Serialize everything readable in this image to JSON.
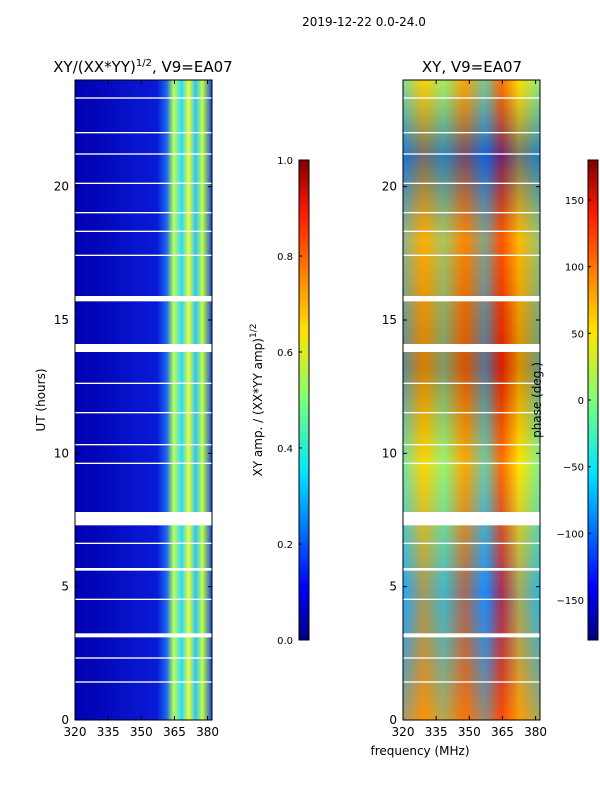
{
  "suptitle": "2019-12-22 0.0-24.0",
  "chart_data": [
    {
      "type": "heatmap",
      "title_main": "XY/(XX*YY)",
      "title_exp": "1/2",
      "title_tail": ", V9=EA07",
      "ylabel": "UT (hours)",
      "xticks": [
        320,
        335,
        350,
        365,
        380
      ],
      "yticks": [
        0,
        5,
        10,
        15,
        20
      ],
      "xlim": [
        320,
        382
      ],
      "ylim": [
        0,
        24
      ],
      "colorbar": {
        "label_main": "XY amp. / (XX*YY amp)",
        "label_exp": "1/2",
        "range": [
          0.0,
          1.0
        ],
        "ticks": [
          "0.0",
          "0.2",
          "0.4",
          "0.6",
          "0.8",
          "1.0"
        ]
      }
    },
    {
      "type": "heatmap",
      "title": "XY, V9=EA07",
      "xlabel": "frequency (MHz)",
      "xticks": [
        320,
        335,
        350,
        365,
        380
      ],
      "yticks": [
        0,
        5,
        10,
        15,
        20
      ],
      "xlim": [
        320,
        382
      ],
      "ylim": [
        0,
        24
      ],
      "colorbar": {
        "label": "phase (deg.)",
        "range": [
          -180,
          180
        ],
        "ticks": [
          "150",
          "100",
          "50",
          "0",
          "−50",
          "−100",
          "−150"
        ]
      }
    }
  ],
  "gaps_hours": [
    [
      7.3,
      7.8
    ],
    [
      13.8,
      14.1
    ],
    [
      15.7,
      15.9
    ],
    [
      3.1,
      3.25
    ],
    [
      5.6,
      5.7
    ],
    [
      1.4,
      1.45
    ],
    [
      9.6,
      9.65
    ],
    [
      11.5,
      11.55
    ],
    [
      18.3,
      18.35
    ],
    [
      19.0,
      19.05
    ],
    [
      22.0,
      22.05
    ],
    [
      23.3,
      23.35
    ],
    [
      12.6,
      12.65
    ],
    [
      17.4,
      17.45
    ],
    [
      6.6,
      6.65
    ],
    [
      2.3,
      2.35
    ],
    [
      10.3,
      10.35
    ],
    [
      21.2,
      21.25
    ],
    [
      20.1,
      20.15
    ],
    [
      4.5,
      4.55
    ]
  ]
}
